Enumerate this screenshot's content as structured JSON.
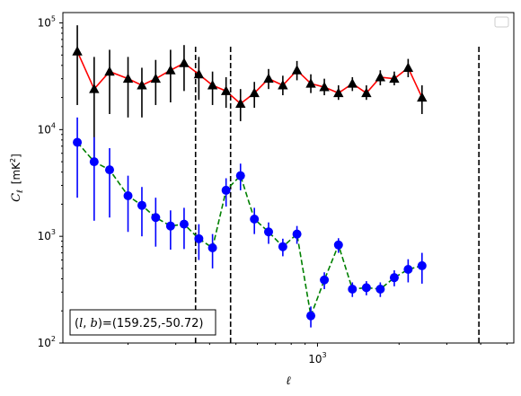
{
  "chart_data": {
    "type": "scatter",
    "xscale": "log",
    "yscale": "log",
    "xlim": [
      115,
      5300
    ],
    "ylim": [
      100,
      125000
    ],
    "xlabel": "ℓ",
    "ylabel": "C_ℓ [mK²]",
    "ylabel_symbol": "C",
    "ylabel_subscript": "ℓ",
    "ylabel_unit_open": "[mK",
    "ylabel_unit_sup": "2",
    "ylabel_unit_close": "]",
    "xticks": [
      {
        "value": 1000,
        "base": "10",
        "exp": "3"
      }
    ],
    "yticks": [
      {
        "value": 100,
        "base": "10",
        "exp": "2"
      },
      {
        "value": 1000,
        "base": "10",
        "exp": "3"
      },
      {
        "value": 10000,
        "base": "10",
        "exp": "4"
      },
      {
        "value": 100000,
        "base": "10",
        "exp": "5"
      }
    ],
    "grid": false,
    "legend": "top-right",
    "vlines": [
      {
        "x": 355,
        "color": "#000000",
        "style": "dashed",
        "ymin": 100,
        "ymax": 62000
      },
      {
        "x": 478,
        "color": "#000000",
        "style": "dashed",
        "ymin": 100,
        "ymax": 62000
      },
      {
        "x": 3940,
        "color": "#000000",
        "style": "dashed",
        "ymin": 100,
        "ymax": 62000
      }
    ],
    "annotation": {
      "text": "(l, b)=(159.25,-50.72)",
      "prefix_l": "l",
      "prefix_b": "b",
      "value": "=(159.25,-50.72)",
      "position": "bottom-left"
    },
    "series": [
      {
        "marker": "triangle",
        "color": "#000000",
        "line_color": "#ff0000",
        "line_style": "solid",
        "points": [
          {
            "x": 130,
            "y": 54000,
            "lo": 17000,
            "hi": 95000
          },
          {
            "x": 150,
            "y": 24000,
            "lo": 5000,
            "hi": 48000
          },
          {
            "x": 171,
            "y": 35000,
            "lo": 14000,
            "hi": 56000
          },
          {
            "x": 200,
            "y": 30000,
            "lo": 13000,
            "hi": 48000
          },
          {
            "x": 225,
            "y": 26000,
            "lo": 13000,
            "hi": 38000
          },
          {
            "x": 253,
            "y": 30000,
            "lo": 17000,
            "hi": 45000
          },
          {
            "x": 287,
            "y": 36000,
            "lo": 18000,
            "hi": 56000
          },
          {
            "x": 322,
            "y": 42000,
            "lo": 23000,
            "hi": 62000
          },
          {
            "x": 365,
            "y": 33000,
            "lo": 19000,
            "hi": 48000
          },
          {
            "x": 410,
            "y": 26000,
            "lo": 17000,
            "hi": 35000
          },
          {
            "x": 460,
            "y": 23000,
            "lo": 16000,
            "hi": 31000
          },
          {
            "x": 520,
            "y": 17500,
            "lo": 12000,
            "hi": 24000
          },
          {
            "x": 585,
            "y": 22000,
            "lo": 16000,
            "hi": 28000
          },
          {
            "x": 660,
            "y": 30000,
            "lo": 24000,
            "hi": 37000
          },
          {
            "x": 745,
            "y": 26000,
            "lo": 21000,
            "hi": 32000
          },
          {
            "x": 840,
            "y": 36000,
            "lo": 29000,
            "hi": 44000
          },
          {
            "x": 945,
            "y": 27000,
            "lo": 22000,
            "hi": 33000
          },
          {
            "x": 1060,
            "y": 25000,
            "lo": 21000,
            "hi": 30000
          },
          {
            "x": 1195,
            "y": 22000,
            "lo": 19000,
            "hi": 26000
          },
          {
            "x": 1345,
            "y": 27000,
            "lo": 23000,
            "hi": 31000
          },
          {
            "x": 1515,
            "y": 22000,
            "lo": 19000,
            "hi": 26000
          },
          {
            "x": 1705,
            "y": 31000,
            "lo": 26000,
            "hi": 36000
          },
          {
            "x": 1920,
            "y": 30000,
            "lo": 26000,
            "hi": 35000
          },
          {
            "x": 2160,
            "y": 38000,
            "lo": 31000,
            "hi": 46000
          },
          {
            "x": 2430,
            "y": 20000,
            "lo": 14000,
            "hi": 26000
          }
        ]
      },
      {
        "marker": "circle",
        "color": "#0000ff",
        "line_color": "#008000",
        "line_style": "dashed",
        "points": [
          {
            "x": 130,
            "y": 7600,
            "lo": 2300,
            "hi": 13000
          },
          {
            "x": 150,
            "y": 5000,
            "lo": 1400,
            "hi": 8500
          },
          {
            "x": 171,
            "y": 4200,
            "lo": 1500,
            "hi": 6700
          },
          {
            "x": 200,
            "y": 2400,
            "lo": 1100,
            "hi": 3700
          },
          {
            "x": 225,
            "y": 1950,
            "lo": 1000,
            "hi": 2900
          },
          {
            "x": 253,
            "y": 1500,
            "lo": 800,
            "hi": 2300
          },
          {
            "x": 287,
            "y": 1250,
            "lo": 750,
            "hi": 1750
          },
          {
            "x": 322,
            "y": 1300,
            "lo": 760,
            "hi": 1850
          },
          {
            "x": 365,
            "y": 950,
            "lo": 600,
            "hi": 1300
          },
          {
            "x": 410,
            "y": 780,
            "lo": 500,
            "hi": 1050
          },
          {
            "x": 460,
            "y": 2700,
            "lo": 1900,
            "hi": 3500
          },
          {
            "x": 520,
            "y": 3700,
            "lo": 2700,
            "hi": 4800
          },
          {
            "x": 585,
            "y": 1450,
            "lo": 1050,
            "hi": 1850
          },
          {
            "x": 660,
            "y": 1100,
            "lo": 850,
            "hi": 1350
          },
          {
            "x": 745,
            "y": 800,
            "lo": 650,
            "hi": 950
          },
          {
            "x": 840,
            "y": 1050,
            "lo": 850,
            "hi": 1250
          },
          {
            "x": 945,
            "y": 180,
            "lo": 140,
            "hi": 220
          },
          {
            "x": 1060,
            "y": 390,
            "lo": 320,
            "hi": 460
          },
          {
            "x": 1195,
            "y": 830,
            "lo": 700,
            "hi": 960
          },
          {
            "x": 1345,
            "y": 320,
            "lo": 270,
            "hi": 370
          },
          {
            "x": 1515,
            "y": 330,
            "lo": 280,
            "hi": 380
          },
          {
            "x": 1705,
            "y": 320,
            "lo": 270,
            "hi": 370
          },
          {
            "x": 1920,
            "y": 410,
            "lo": 340,
            "hi": 480
          },
          {
            "x": 2160,
            "y": 490,
            "lo": 370,
            "hi": 610
          },
          {
            "x": 2430,
            "y": 530,
            "lo": 360,
            "hi": 700
          }
        ]
      }
    ]
  }
}
